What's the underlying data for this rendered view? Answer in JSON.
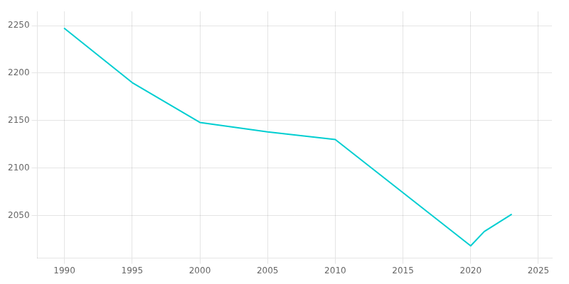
{
  "chart_data": {
    "type": "line",
    "x": [
      1990,
      1995,
      2000,
      2005,
      2010,
      2020,
      2021,
      2022,
      2023
    ],
    "values": [
      2247,
      2190,
      2148,
      2138,
      2130,
      2018,
      2033,
      2042,
      2051
    ],
    "color": "#00CED1",
    "xlim": [
      1988,
      2026
    ],
    "ylim": [
      2005,
      2265
    ],
    "xticks": [
      1990,
      1995,
      2000,
      2005,
      2010,
      2015,
      2020,
      2025
    ],
    "yticks": [
      2050,
      2100,
      2150,
      2200,
      2250
    ],
    "grid": true
  }
}
